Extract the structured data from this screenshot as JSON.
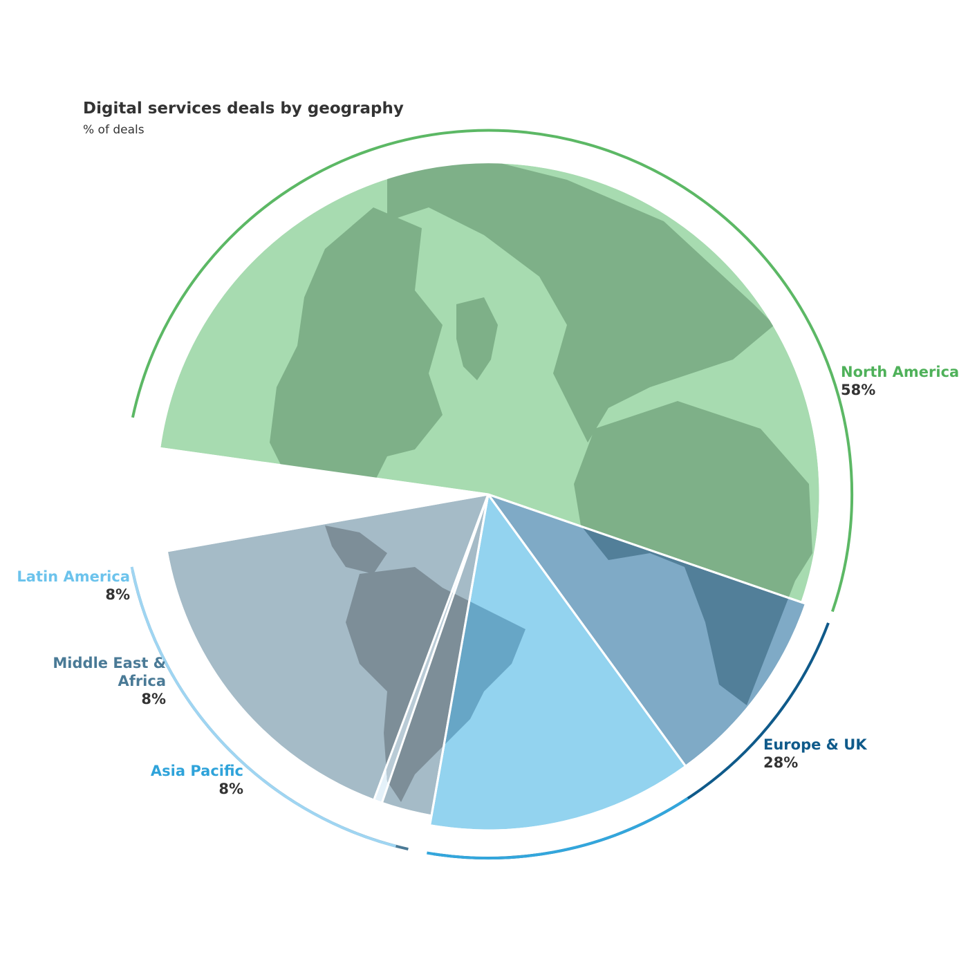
{
  "chart_data": {
    "type": "pie",
    "title": "Digital services deals by geography",
    "subtitle": "% of deals",
    "slices": [
      {
        "name": "North America",
        "value": 58,
        "label": "58%",
        "color": "#a7dbb0",
        "ring_color": "#5cb865",
        "land_color": "#7eb088"
      },
      {
        "name": "Europe & UK",
        "value": 28,
        "label": "28%",
        "color": "#7faac6",
        "ring_color": "#0f5a8a",
        "land_color": "#527f99"
      },
      {
        "name": "Asia Pacific",
        "value": 8,
        "label": "8%",
        "color": "#93d3ef",
        "ring_color": "#33a6dc",
        "land_color": "#67a6c6"
      },
      {
        "name": "Middle East & Africa",
        "value": 8,
        "label": "8%",
        "color": "#a5bbc7",
        "ring_color": "#4a7a96",
        "land_color": "#7d8e98"
      },
      {
        "name": "Latin America",
        "value": 8,
        "label": "8%",
        "color": "#e4f1f9",
        "ring_color": "#9fd5f2",
        "land_color": "#b9cbd6"
      }
    ]
  }
}
